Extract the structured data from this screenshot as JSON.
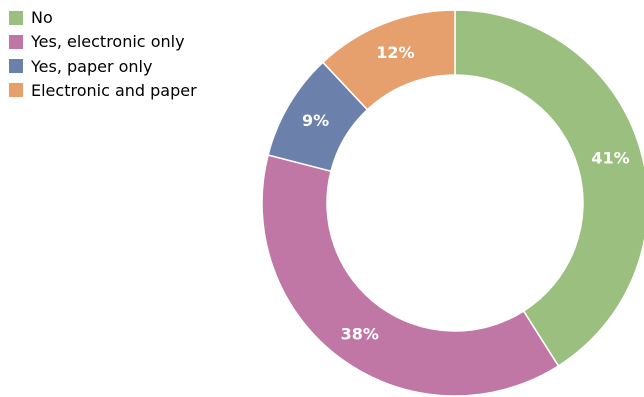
{
  "chart_data": {
    "type": "pie",
    "donut": true,
    "legend_position": "top-left",
    "categories": [
      "No",
      "Yes, electronic only",
      "Yes, paper only",
      "Electronic and paper"
    ],
    "values": [
      41,
      38,
      9,
      12
    ],
    "labels": [
      "41%",
      "38%",
      "9%",
      "12%"
    ],
    "colors": [
      "#9bbf7e",
      "#c077a6",
      "#6b80aa",
      "#e6a06d"
    ]
  }
}
